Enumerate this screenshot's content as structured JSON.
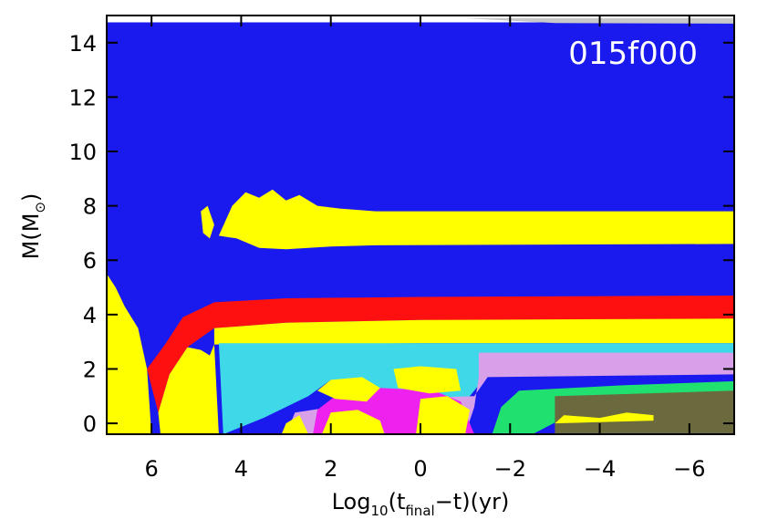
{
  "chart_data": {
    "type": "heatmap",
    "title": "",
    "annotation": "015f000",
    "xlabel": {
      "main": "Log",
      "sub": "10",
      "open": "(t",
      "sub2": "final",
      "close": "−t)(yr)"
    },
    "ylabel": {
      "main": "M(M",
      "sub": "⊙",
      "close": ")"
    },
    "xlim": [
      7,
      -7
    ],
    "ylim": [
      -0.4,
      15
    ],
    "x_ticks": [
      6,
      4,
      2,
      0,
      -2,
      -4,
      -6
    ],
    "x_tick_labels": [
      "6",
      "4",
      "2",
      "0",
      "−2",
      "−4",
      "−6"
    ],
    "y_ticks": [
      0,
      2,
      4,
      6,
      8,
      10,
      12,
      14
    ],
    "y_tick_labels": [
      "0",
      "2",
      "4",
      "6",
      "8",
      "10",
      "12",
      "14"
    ],
    "grid": false,
    "colors": {
      "envelope": "#1a1aee",
      "convection": "#ffff00",
      "burning": "#ff1010",
      "core": "#3fd8e8",
      "magenta": "#ee22ee",
      "lavender": "#d8a0e8",
      "green": "#20e070",
      "olive": "#6a6a3e",
      "lost": "#c8c8c8"
    },
    "regions": [
      {
        "name": "envelope",
        "color": "envelope",
        "poly": [
          [
            7,
            -0.4
          ],
          [
            -7,
            -0.4
          ],
          [
            -7,
            14.75
          ],
          [
            7,
            14.75
          ]
        ]
      },
      {
        "name": "mass-lost",
        "color": "lost",
        "poly": [
          [
            -1,
            14.9
          ],
          [
            -7,
            14.9
          ],
          [
            -7,
            14.7
          ],
          [
            -3,
            14.72
          ]
        ]
      },
      {
        "name": "outer-convection-zone",
        "color": "convection",
        "poly": [
          [
            4.5,
            6.9
          ],
          [
            4.2,
            8.0
          ],
          [
            3.9,
            8.5
          ],
          [
            3.6,
            8.3
          ],
          [
            3.3,
            8.6
          ],
          [
            3.0,
            8.2
          ],
          [
            2.7,
            8.4
          ],
          [
            2.3,
            8.0
          ],
          [
            1.8,
            7.9
          ],
          [
            1.0,
            7.8
          ],
          [
            -7,
            7.8
          ],
          [
            -7,
            6.6
          ],
          [
            1.0,
            6.55
          ],
          [
            2.0,
            6.5
          ],
          [
            3.0,
            6.4
          ],
          [
            3.6,
            6.45
          ],
          [
            4.1,
            6.8
          ]
        ]
      },
      {
        "name": "convective-blob",
        "color": "convection",
        "poly": [
          [
            4.9,
            7.8
          ],
          [
            4.75,
            8.0
          ],
          [
            4.6,
            7.3
          ],
          [
            4.7,
            6.8
          ],
          [
            4.85,
            7.0
          ]
        ]
      },
      {
        "name": "burning-shell",
        "color": "burning",
        "poly": [
          [
            6.1,
            2.0
          ],
          [
            5.7,
            2.9
          ],
          [
            5.3,
            3.9
          ],
          [
            4.6,
            4.45
          ],
          [
            3.0,
            4.6
          ],
          [
            0,
            4.65
          ],
          [
            -7,
            4.7
          ],
          [
            -7,
            3.6
          ],
          [
            0,
            3.8
          ],
          [
            3.0,
            3.7
          ],
          [
            4.6,
            3.5
          ],
          [
            5.2,
            2.8
          ],
          [
            5.6,
            1.8
          ],
          [
            5.85,
            0.4
          ]
        ]
      },
      {
        "name": "yellow-shell",
        "color": "convection",
        "poly": [
          [
            4.6,
            3.5
          ],
          [
            3.0,
            3.7
          ],
          [
            0,
            3.8
          ],
          [
            -7,
            3.85
          ],
          [
            -7,
            2.95
          ],
          [
            0,
            2.95
          ],
          [
            4.6,
            2.9
          ]
        ]
      },
      {
        "name": "core-region",
        "color": "core",
        "poly": [
          [
            4.5,
            2.95
          ],
          [
            -7,
            2.95
          ],
          [
            -7,
            1.9
          ],
          [
            -1.5,
            1.8
          ],
          [
            -1,
            0.8
          ],
          [
            0,
            0.8
          ],
          [
            1,
            1.2
          ],
          [
            2,
            1.6
          ],
          [
            2.5,
            1.0
          ],
          [
            3.5,
            0.2
          ],
          [
            4.4,
            -0.4
          ]
        ]
      },
      {
        "name": "lavender-zone",
        "color": "lavender",
        "poly": [
          [
            -1.3,
            2.6
          ],
          [
            -7,
            2.6
          ],
          [
            -7,
            1.8
          ],
          [
            -1.5,
            1.7
          ],
          [
            -1.2,
            1.0
          ],
          [
            0.8,
            0.9
          ],
          [
            2.8,
            0.4
          ],
          [
            3,
            -0.4
          ],
          [
            -1,
            -0.4
          ],
          [
            -1.2,
            0.6
          ],
          [
            -1.3,
            1.7
          ]
        ]
      },
      {
        "name": "magenta-zone",
        "color": "magenta",
        "poly": [
          [
            1.9,
            1.0
          ],
          [
            0.9,
            1.3
          ],
          [
            -0.3,
            1.2
          ],
          [
            -0.9,
            0.8
          ],
          [
            -1.2,
            -0.4
          ],
          [
            2.4,
            -0.4
          ],
          [
            2.3,
            0.5
          ]
        ]
      },
      {
        "name": "green-zone",
        "color": "green",
        "poly": [
          [
            -2.2,
            1.2
          ],
          [
            -4.5,
            1.4
          ],
          [
            -7,
            1.55
          ],
          [
            -7,
            0.9
          ],
          [
            -4.5,
            0.7
          ],
          [
            -3.2,
            0.2
          ],
          [
            -2.5,
            -0.4
          ],
          [
            -1.6,
            -0.4
          ],
          [
            -1.8,
            0.6
          ]
        ]
      },
      {
        "name": "olive-core",
        "color": "olive",
        "poly": [
          [
            -3,
            1.0
          ],
          [
            -7,
            1.2
          ],
          [
            -7,
            -0.4
          ],
          [
            -3,
            -0.4
          ]
        ]
      },
      {
        "name": "core-convection-left",
        "color": "convection",
        "poly": [
          [
            7,
            5.5
          ],
          [
            6.8,
            5.0
          ],
          [
            6.6,
            4.3
          ],
          [
            6.3,
            3.5
          ],
          [
            6.1,
            2.0
          ],
          [
            6,
            -0.4
          ],
          [
            7,
            -0.4
          ]
        ]
      },
      {
        "name": "core-convection-step",
        "color": "convection",
        "poly": [
          [
            5.6,
            1.8
          ],
          [
            5.2,
            2.8
          ],
          [
            4.9,
            2.7
          ],
          [
            4.7,
            2.5
          ],
          [
            4.6,
            2.9
          ],
          [
            4.5,
            -0.4
          ],
          [
            5.8,
            -0.4
          ],
          [
            5.85,
            0.4
          ]
        ]
      },
      {
        "name": "shell-blocks-1",
        "color": "convection",
        "poly": [
          [
            2.3,
            1.2
          ],
          [
            2.0,
            1.6
          ],
          [
            1.3,
            1.7
          ],
          [
            0.9,
            1.3
          ],
          [
            1.2,
            0.8
          ],
          [
            1.9,
            0.9
          ]
        ]
      },
      {
        "name": "shell-blocks-2",
        "color": "convection",
        "poly": [
          [
            0.6,
            2.0
          ],
          [
            0.0,
            2.1
          ],
          [
            -0.8,
            2.0
          ],
          [
            -0.9,
            1.2
          ],
          [
            -0.2,
            1.1
          ],
          [
            0.5,
            1.3
          ]
        ]
      },
      {
        "name": "shell-blocks-3",
        "color": "convection",
        "poly": [
          [
            2.2,
            -0.4
          ],
          [
            2.0,
            0.4
          ],
          [
            1.4,
            0.5
          ],
          [
            0.9,
            0.1
          ],
          [
            0.8,
            -0.4
          ]
        ]
      },
      {
        "name": "shell-blocks-4",
        "color": "convection",
        "poly": [
          [
            0.0,
            0.9
          ],
          [
            -0.6,
            1.0
          ],
          [
            -1.1,
            0.5
          ],
          [
            -1.0,
            -0.4
          ],
          [
            0.1,
            -0.4
          ]
        ]
      },
      {
        "name": "shell-blocks-5",
        "color": "convection",
        "poly": [
          [
            3.0,
            0.0
          ],
          [
            2.7,
            0.3
          ],
          [
            2.5,
            -0.4
          ],
          [
            3.1,
            -0.4
          ]
        ]
      },
      {
        "name": "shell-blocks-6",
        "color": "convection",
        "poly": [
          [
            -3.2,
            0.3
          ],
          [
            -4.0,
            0.2
          ],
          [
            -4.6,
            0.4
          ],
          [
            -5.2,
            0.3
          ],
          [
            -5.2,
            0.1
          ],
          [
            -3.0,
            0.0
          ]
        ]
      }
    ]
  }
}
